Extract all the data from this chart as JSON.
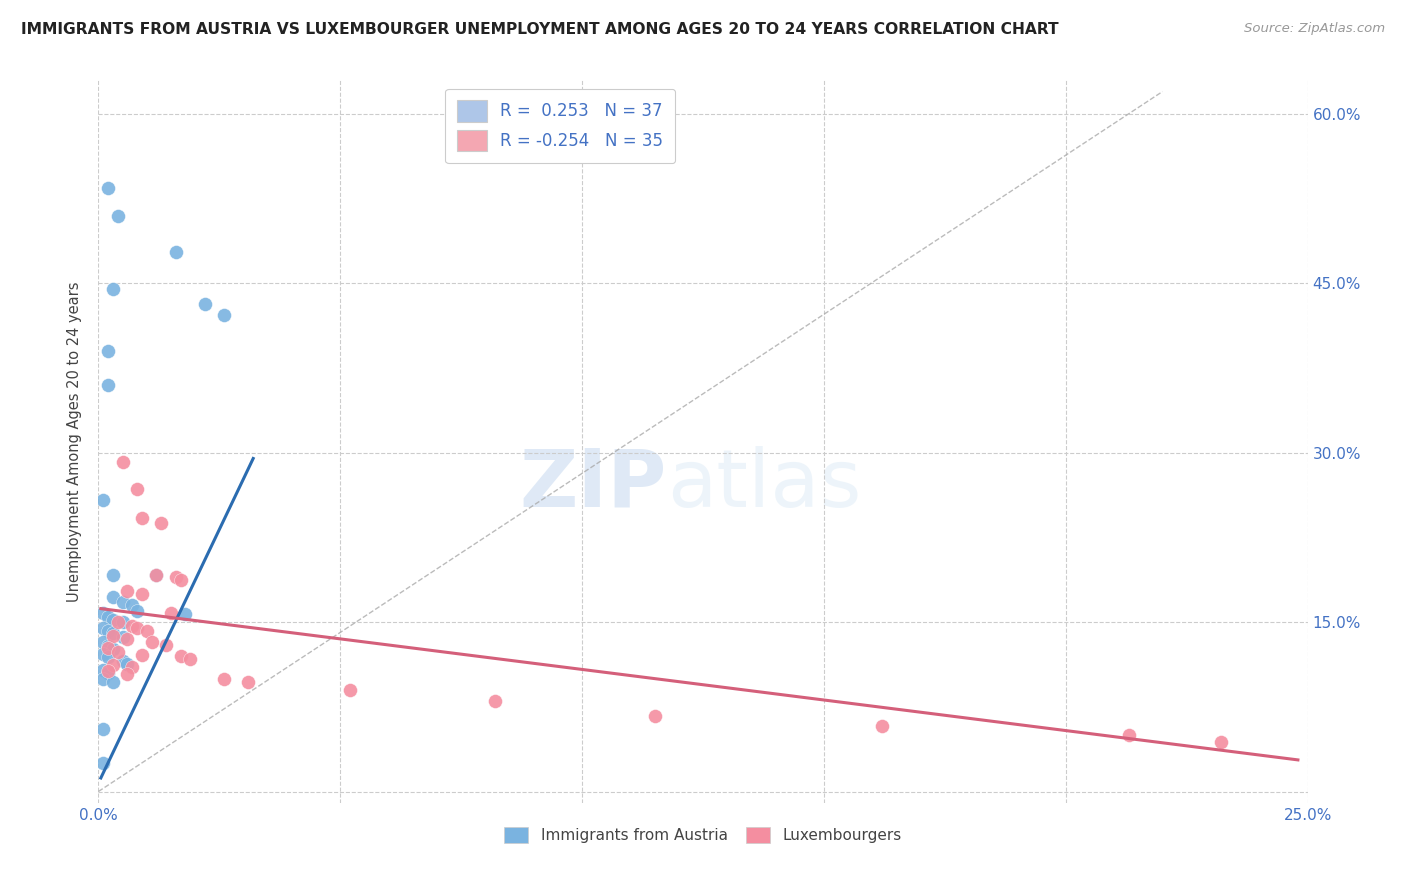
{
  "title": "IMMIGRANTS FROM AUSTRIA VS LUXEMBOURGER UNEMPLOYMENT AMONG AGES 20 TO 24 YEARS CORRELATION CHART",
  "source": "Source: ZipAtlas.com",
  "ylabel": "Unemployment Among Ages 20 to 24 years",
  "ytick_values": [
    0.0,
    0.15,
    0.3,
    0.45,
    0.6
  ],
  "ytick_labels": [
    "",
    "15.0%",
    "30.0%",
    "45.0%",
    "60.0%"
  ],
  "xlim": [
    0.0,
    0.25
  ],
  "ylim": [
    -0.01,
    0.63
  ],
  "legend_entries": [
    {
      "label_r": "R =  0.253",
      "label_n": "N = 37",
      "color": "#aec6e8"
    },
    {
      "label_r": "R = -0.254",
      "label_n": "N = 35",
      "color": "#f4a7b2"
    }
  ],
  "watermark_zip": "ZIP",
  "watermark_atlas": "atlas",
  "austria_color": "#7ab3e0",
  "luxembourg_color": "#f48ea0",
  "trendline_austria_color": "#2b6cb0",
  "trendline_luxembourg_color": "#d45f7a",
  "austria_scatter": [
    [
      0.002,
      0.535
    ],
    [
      0.004,
      0.51
    ],
    [
      0.016,
      0.478
    ],
    [
      0.003,
      0.445
    ],
    [
      0.022,
      0.432
    ],
    [
      0.026,
      0.422
    ],
    [
      0.002,
      0.39
    ],
    [
      0.002,
      0.36
    ],
    [
      0.001,
      0.258
    ],
    [
      0.003,
      0.192
    ],
    [
      0.012,
      0.192
    ],
    [
      0.003,
      0.172
    ],
    [
      0.005,
      0.168
    ],
    [
      0.007,
      0.165
    ],
    [
      0.001,
      0.158
    ],
    [
      0.002,
      0.155
    ],
    [
      0.003,
      0.152
    ],
    [
      0.005,
      0.15
    ],
    [
      0.001,
      0.145
    ],
    [
      0.002,
      0.142
    ],
    [
      0.003,
      0.14
    ],
    [
      0.005,
      0.137
    ],
    [
      0.001,
      0.132
    ],
    [
      0.002,
      0.129
    ],
    [
      0.003,
      0.126
    ],
    [
      0.001,
      0.122
    ],
    [
      0.002,
      0.119
    ],
    [
      0.005,
      0.116
    ],
    [
      0.006,
      0.113
    ],
    [
      0.001,
      0.108
    ],
    [
      0.002,
      0.105
    ],
    [
      0.001,
      0.1
    ],
    [
      0.003,
      0.097
    ],
    [
      0.001,
      0.055
    ],
    [
      0.001,
      0.025
    ],
    [
      0.018,
      0.157
    ],
    [
      0.008,
      0.16
    ]
  ],
  "luxembourg_scatter": [
    [
      0.005,
      0.292
    ],
    [
      0.008,
      0.268
    ],
    [
      0.009,
      0.242
    ],
    [
      0.013,
      0.238
    ],
    [
      0.012,
      0.192
    ],
    [
      0.016,
      0.19
    ],
    [
      0.017,
      0.187
    ],
    [
      0.006,
      0.178
    ],
    [
      0.009,
      0.175
    ],
    [
      0.015,
      0.158
    ],
    [
      0.004,
      0.15
    ],
    [
      0.007,
      0.147
    ],
    [
      0.008,
      0.145
    ],
    [
      0.01,
      0.142
    ],
    [
      0.003,
      0.138
    ],
    [
      0.006,
      0.135
    ],
    [
      0.011,
      0.132
    ],
    [
      0.014,
      0.13
    ],
    [
      0.002,
      0.127
    ],
    [
      0.004,
      0.124
    ],
    [
      0.009,
      0.121
    ],
    [
      0.017,
      0.12
    ],
    [
      0.019,
      0.117
    ],
    [
      0.003,
      0.112
    ],
    [
      0.007,
      0.11
    ],
    [
      0.002,
      0.107
    ],
    [
      0.006,
      0.104
    ],
    [
      0.026,
      0.1
    ],
    [
      0.031,
      0.097
    ],
    [
      0.052,
      0.09
    ],
    [
      0.082,
      0.08
    ],
    [
      0.115,
      0.067
    ],
    [
      0.162,
      0.058
    ],
    [
      0.213,
      0.05
    ],
    [
      0.232,
      0.044
    ]
  ],
  "austria_trend_x": [
    0.0005,
    0.032
  ],
  "austria_trend_y": [
    0.012,
    0.295
  ],
  "luxembourg_trend_x": [
    0.0005,
    0.248
  ],
  "luxembourg_trend_y": [
    0.162,
    0.028
  ],
  "dash_line_x": [
    0.0,
    0.22
  ],
  "dash_line_y": [
    0.0,
    0.62
  ]
}
